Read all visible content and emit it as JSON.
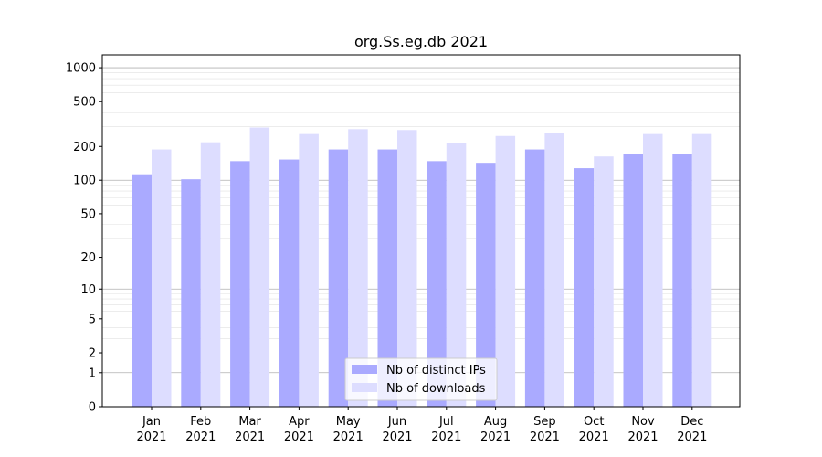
{
  "chart_data": {
    "type": "bar",
    "title": "org.Ss.eg.db 2021",
    "xlabel": "",
    "ylabel": "",
    "yscale": "symlog",
    "ylim": [
      0,
      1300
    ],
    "yticks": [
      0,
      1,
      2,
      5,
      10,
      20,
      50,
      100,
      200,
      500,
      1000
    ],
    "grid": true,
    "legend_position": "bottom-center",
    "categories": [
      [
        "Jan",
        "2021"
      ],
      [
        "Feb",
        "2021"
      ],
      [
        "Mar",
        "2021"
      ],
      [
        "Apr",
        "2021"
      ],
      [
        "May",
        "2021"
      ],
      [
        "Jun",
        "2021"
      ],
      [
        "Jul",
        "2021"
      ],
      [
        "Aug",
        "2021"
      ],
      [
        "Sep",
        "2021"
      ],
      [
        "Oct",
        "2021"
      ],
      [
        "Nov",
        "2021"
      ],
      [
        "Dec",
        "2021"
      ]
    ],
    "series": [
      {
        "name": "Nb of distinct IPs",
        "color": "#aaaaff",
        "values": [
          113,
          102,
          148,
          153,
          188,
          188,
          148,
          143,
          188,
          128,
          173,
          173
        ]
      },
      {
        "name": "Nb of downloads",
        "color": "#ddddff",
        "values": [
          188,
          218,
          295,
          258,
          285,
          280,
          213,
          248,
          263,
          163,
          258,
          258
        ]
      }
    ]
  }
}
